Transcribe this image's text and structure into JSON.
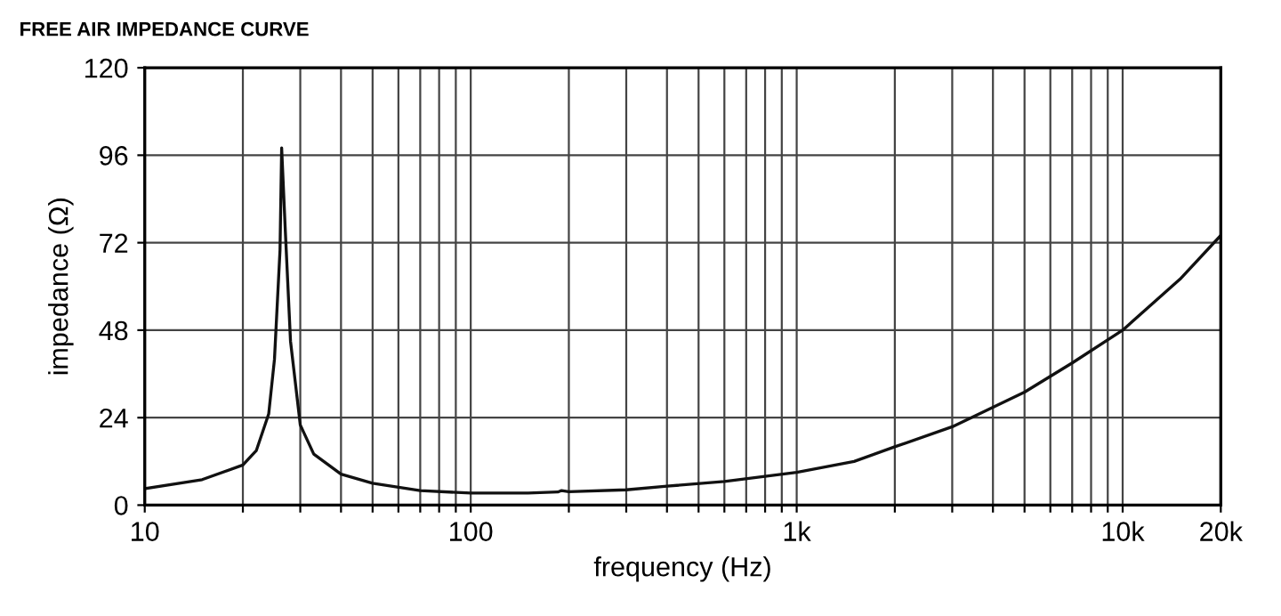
{
  "chart_data": {
    "type": "line",
    "title": "FREE AIR IMPEDANCE CURVE",
    "xlabel": "frequency (Hz)",
    "ylabel": "impedance (Ω)",
    "log": "x",
    "grid": true,
    "legend": false,
    "marker": "none",
    "line_style": "solid",
    "xlim": [
      10,
      20000
    ],
    "ylim": [
      0,
      120
    ],
    "xticks": [
      10,
      {
        "value": 20,
        "label": null
      },
      {
        "value": 30,
        "label": null
      },
      {
        "value": 40,
        "label": null
      },
      {
        "value": 50,
        "label": null
      },
      {
        "value": 60,
        "label": null
      },
      {
        "value": 70,
        "label": null
      },
      {
        "value": 80,
        "label": null
      },
      {
        "value": 90,
        "label": null
      },
      100,
      {
        "value": 200,
        "label": null
      },
      {
        "value": 300,
        "label": null
      },
      {
        "value": 400,
        "label": null
      },
      {
        "value": 500,
        "label": null
      },
      {
        "value": 600,
        "label": null
      },
      {
        "value": 700,
        "label": null
      },
      {
        "value": 800,
        "label": null
      },
      {
        "value": 900,
        "label": null
      },
      {
        "value": 1000,
        "label": "1k"
      },
      {
        "value": 2000,
        "label": null
      },
      {
        "value": 3000,
        "label": null
      },
      {
        "value": 4000,
        "label": null
      },
      {
        "value": 5000,
        "label": null
      },
      {
        "value": 6000,
        "label": null
      },
      {
        "value": 7000,
        "label": null
      },
      {
        "value": 8000,
        "label": null
      },
      {
        "value": 9000,
        "label": null
      },
      {
        "value": 10000,
        "label": "10k"
      },
      {
        "value": 20000,
        "label": "20k"
      }
    ],
    "yticks": [
      0,
      24,
      48,
      72,
      96,
      120
    ],
    "series": [
      {
        "color": "#111111",
        "x": [
          10,
          15,
          20,
          22,
          24,
          25,
          26,
          26.3,
          27,
          28,
          30,
          33,
          40,
          50,
          70,
          100,
          150,
          185,
          190,
          200,
          300,
          400,
          600,
          1000,
          1500,
          2000,
          3000,
          5000,
          7000,
          10000,
          15000,
          20000
        ],
        "values": [
          4.5,
          7,
          11,
          15,
          25,
          40,
          70,
          98,
          75,
          45,
          22,
          14,
          8.5,
          6,
          4,
          3.3,
          3.3,
          3.6,
          4,
          3.7,
          4.2,
          5.2,
          6.5,
          9,
          12,
          16,
          21.5,
          31,
          39,
          48,
          62,
          74
        ]
      }
    ]
  }
}
